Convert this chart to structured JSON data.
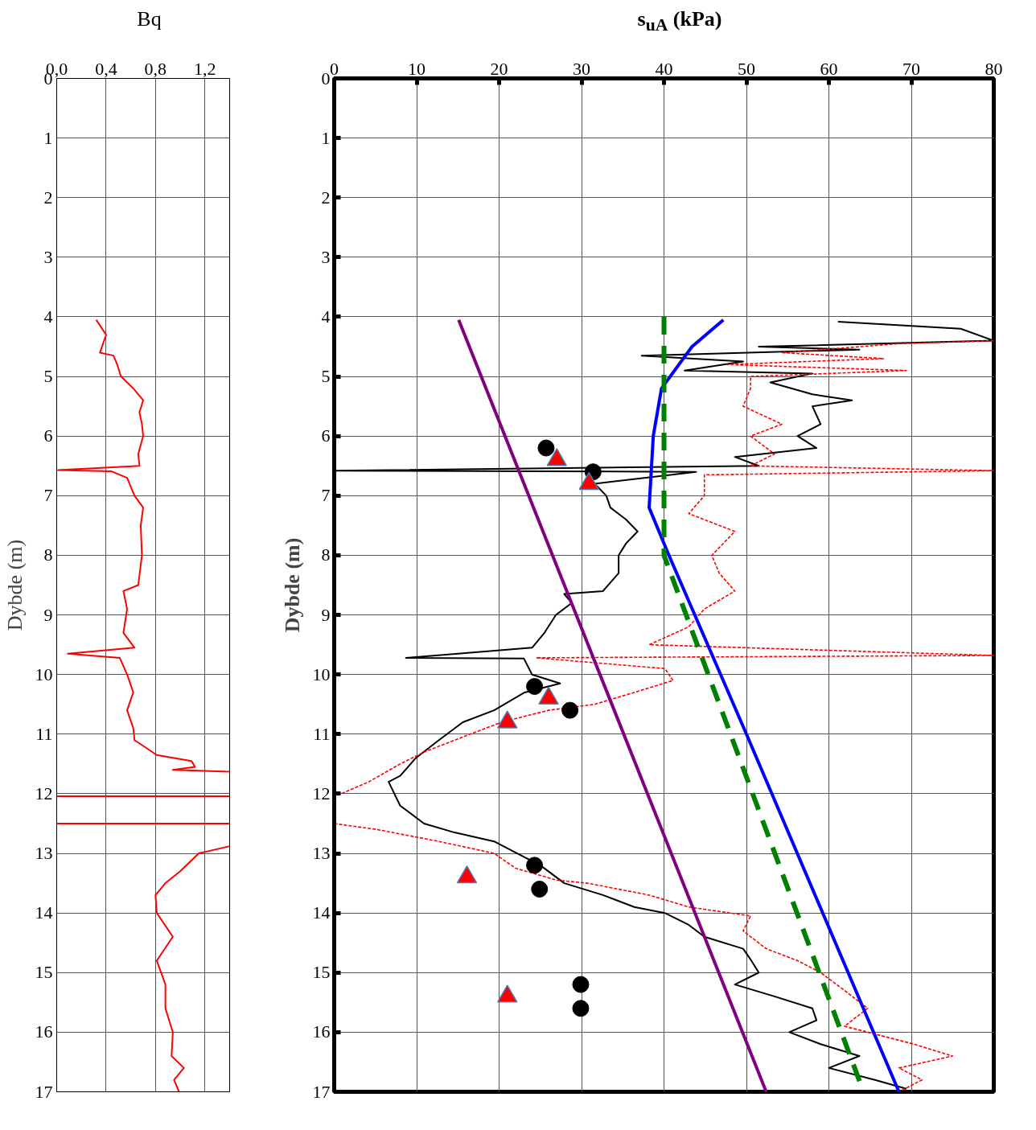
{
  "chart_data": [
    {
      "type": "line",
      "xlabel": "Bq",
      "ylabel": "Dybde (m)",
      "xlim": [
        0,
        1.4
      ],
      "xticks": [
        {
          "value": 0,
          "label": "0,0"
        },
        {
          "value": 0.4,
          "label": "0,4"
        },
        {
          "value": 0.8,
          "label": "0,8"
        },
        {
          "value": 1.2,
          "label": "1,2"
        }
      ],
      "ylim": [
        17,
        0
      ],
      "yticks": [
        0,
        1,
        2,
        3,
        4,
        5,
        6,
        7,
        8,
        9,
        10,
        11,
        12,
        13,
        14,
        15,
        16,
        17
      ],
      "grid": true,
      "series": [
        {
          "color": "#ff0000",
          "line_style": "solid",
          "x": [
            0.32,
            0.4,
            0.35,
            0.46,
            0.49,
            0.52,
            0.62,
            0.7,
            0.67,
            0.69,
            0.7,
            0.66,
            0.67,
            0.01,
            0.44,
            0.57,
            0.63,
            0.7,
            0.68,
            0.69,
            0.66,
            0.54,
            0.57,
            0.54,
            0.63,
            0.09,
            0.51,
            0.57,
            0.62,
            0.57,
            0.62,
            0.63,
            0.81,
            1.09,
            1.12,
            0.94,
            1.4,
            null,
            1.4,
            1.15,
            1.0,
            0.88,
            0.8,
            0.81,
            0.94,
            0.81,
            0.88,
            0.88,
            0.94,
            0.93,
            1.03,
            0.95,
            0.99
          ],
          "values": [
            4.05,
            4.3,
            4.6,
            4.65,
            4.8,
            5.0,
            5.2,
            5.4,
            5.6,
            5.8,
            6.0,
            6.3,
            6.5,
            6.57,
            6.59,
            6.7,
            7.0,
            7.2,
            7.5,
            8.0,
            8.5,
            8.6,
            8.9,
            9.3,
            9.55,
            9.65,
            9.72,
            10.0,
            10.3,
            10.6,
            10.9,
            11.1,
            11.35,
            11.45,
            11.55,
            11.6,
            11.63,
            null,
            12.88,
            13.0,
            13.3,
            13.5,
            13.7,
            14.0,
            14.4,
            14.8,
            15.2,
            15.6,
            16.0,
            16.4,
            16.6,
            16.8,
            17.0
          ]
        }
      ],
      "ref_lines": [
        {
          "axis": "y",
          "value": 12.04,
          "color": "#ff0000"
        },
        {
          "axis": "y",
          "value": 12.5,
          "color": "#ff0000"
        }
      ]
    },
    {
      "type": "line",
      "xlabel": "s$_{uA}$ (kPa)",
      "ylabel": "Dybde (m)",
      "xlim": [
        0,
        80
      ],
      "xticks": [
        0,
        10,
        20,
        30,
        40,
        50,
        60,
        70,
        80
      ],
      "ylim": [
        17,
        0
      ],
      "yticks": [
        0,
        1,
        2,
        3,
        4,
        5,
        6,
        7,
        8,
        9,
        10,
        11,
        12,
        13,
        14,
        15,
        16,
        17
      ],
      "grid": true,
      "series": [
        {
          "color": "#000000",
          "line_style": "solid",
          "x": [
            61.1,
            76,
            80,
            51.5,
            63.7,
            37.3,
            49.6,
            42.5,
            58,
            52.9,
            58,
            62.8,
            58,
            59,
            56.2,
            58.5,
            48.6,
            51.5,
            0,
            43.9,
            31.6,
            33,
            33.5,
            35.4,
            36.8,
            35.4,
            34.5,
            34.5,
            32.6,
            27.9,
            28.8,
            26.9,
            25.5,
            24,
            8.7,
            23,
            24,
            27.4,
            23.1,
            19.4,
            15.6,
            12.7,
            9.9,
            8,
            6.6,
            8,
            10.9,
            14.6,
            19.4,
            22.2,
            25,
            27.9,
            32.6,
            36.4,
            40.1,
            43,
            44.9,
            49.6,
            50.6,
            51.5,
            48.6,
            53.4,
            58,
            58.5,
            55.2,
            59,
            63.7,
            60,
            65.6,
            69.4
          ],
          "values": [
            4.08,
            4.2,
            4.4,
            4.5,
            4.55,
            4.65,
            4.75,
            4.9,
            4.95,
            5.1,
            5.3,
            5.4,
            5.5,
            5.8,
            6.0,
            6.2,
            6.35,
            6.5,
            6.58,
            6.6,
            6.8,
            7.0,
            7.2,
            7.4,
            7.6,
            7.8,
            8.0,
            8.3,
            8.6,
            8.65,
            8.8,
            9.0,
            9.3,
            9.55,
            9.72,
            9.73,
            10.0,
            10.15,
            10.3,
            10.6,
            10.8,
            11.1,
            11.4,
            11.7,
            11.8,
            12.2,
            12.5,
            12.65,
            12.8,
            13.0,
            13.2,
            13.5,
            13.7,
            13.9,
            14.0,
            14.2,
            14.4,
            14.6,
            14.8,
            15.0,
            15.2,
            15.4,
            15.6,
            15.8,
            16.0,
            16.2,
            16.4,
            16.6,
            16.8,
            16.95
          ]
        },
        {
          "color": "#ff0000",
          "line_style": "dashed",
          "x": [
            80,
            68.5,
            54.3,
            66.6,
            47.7,
            69.4,
            50.5,
            50.5,
            49.6,
            54.3,
            50.5,
            53.4,
            50.5,
            80,
            44.9,
            44.9,
            43,
            48.6,
            45.8,
            46.7,
            48.6,
            44.9,
            43,
            38.2,
            80,
            24.5,
            40.1,
            41.1,
            36.4,
            31.6,
            26,
            20.3,
            16.5,
            10.9,
            8,
            4.2,
            0,
            null,
            0,
            5.2,
            12.7,
            19.4,
            22,
            27,
            30.7,
            38.2,
            43,
            50.5,
            49.6,
            52.4,
            56.2,
            59,
            61.9,
            64.7,
            61.9,
            70.3,
            75,
            68.5,
            71.3,
            68.5
          ],
          "values": [
            4.4,
            4.45,
            4.6,
            4.7,
            4.8,
            4.9,
            5.0,
            5.2,
            5.5,
            5.8,
            6.0,
            6.3,
            6.5,
            6.58,
            6.65,
            7.0,
            7.3,
            7.6,
            8.0,
            8.3,
            8.6,
            8.9,
            9.2,
            9.5,
            9.68,
            9.72,
            9.9,
            10.1,
            10.3,
            10.5,
            10.6,
            10.8,
            11.0,
            11.3,
            11.5,
            11.8,
            12.05,
            null,
            12.5,
            12.6,
            12.8,
            13.0,
            13.25,
            13.45,
            13.5,
            13.7,
            13.9,
            14.05,
            14.3,
            14.6,
            14.8,
            15.0,
            15.3,
            15.6,
            15.9,
            16.2,
            16.4,
            16.6,
            16.8,
            17.0
          ]
        },
        {
          "color": "#0000ff",
          "line_style": "solid",
          "x": [
            47.2,
            43.4,
            39.7,
            38.7,
            38.2,
            40.6,
            50,
            68.5
          ],
          "values": [
            4.05,
            4.5,
            5.2,
            6.0,
            7.2,
            8.0,
            11.0,
            17.0
          ]
        },
        {
          "color": "#008000",
          "line_style": "dashed",
          "x": [
            40,
            40,
            64.2
          ],
          "values": [
            4.0,
            8.0,
            17.0
          ]
        },
        {
          "color": "#800080",
          "line_style": "solid",
          "x": [
            15.1,
            52.4
          ],
          "values": [
            4.05,
            17.0
          ]
        },
        {
          "type": "scatter",
          "marker": "circle",
          "color": "#000000",
          "x": [
            25.7,
            31.4,
            24.3,
            28.6,
            24.3,
            24.9,
            29.9,
            29.9
          ],
          "values": [
            6.2,
            6.6,
            10.2,
            10.6,
            13.2,
            13.6,
            15.2,
            15.6
          ]
        },
        {
          "type": "scatter",
          "marker": "triangle",
          "color": "#ff0000",
          "x": [
            27,
            30.9,
            26,
            21,
            16.1,
            21
          ],
          "values": [
            6.4,
            6.8,
            10.4,
            10.8,
            13.4,
            15.4
          ]
        }
      ]
    }
  ]
}
